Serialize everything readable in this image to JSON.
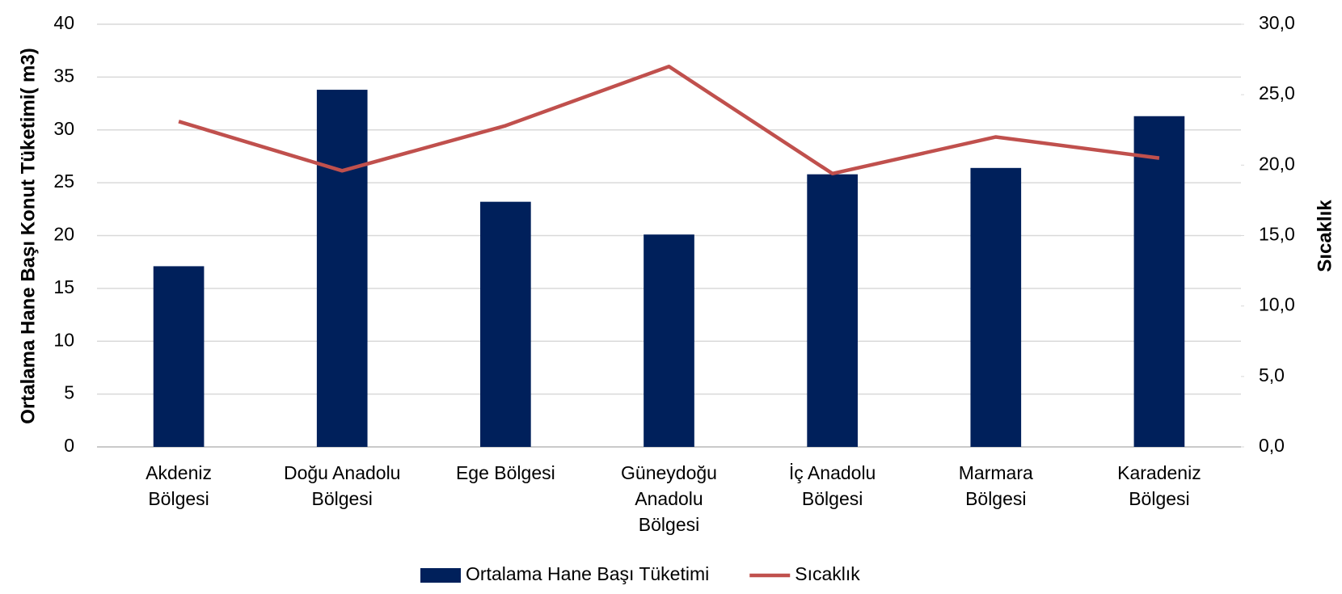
{
  "chart_data": {
    "type": "bar_line",
    "y_label": "Ortalama Hane Başı Konut Tüketimi( m3)",
    "y2_label": "Sıcaklık",
    "categories": [
      [
        "Akdeniz",
        "Bölgesi"
      ],
      [
        "Doğu Anadolu",
        "Bölgesi"
      ],
      [
        "Ege Bölgesi"
      ],
      [
        "Güneydoğu",
        "Anadolu",
        "Bölgesi"
      ],
      [
        "İç Anadolu",
        "Bölgesi"
      ],
      [
        "Marmara",
        "Bölgesi"
      ],
      [
        "Karadeniz",
        "Bölgesi"
      ]
    ],
    "series": [
      {
        "name": "Ortalama Hane Başı Tüketimi",
        "type": "bar",
        "color": "#00205b",
        "values": [
          17.1,
          33.8,
          23.2,
          20.1,
          25.8,
          26.4,
          31.3
        ]
      },
      {
        "name": "Sıcaklık",
        "type": "line",
        "axis": "y2",
        "color": "#c0504d",
        "values": [
          23.1,
          19.6,
          22.8,
          27.0,
          19.4,
          22.0,
          20.5
        ]
      }
    ],
    "ylim": [
      0,
      40
    ],
    "yticks": [
      0,
      5,
      10,
      15,
      20,
      25,
      30,
      35,
      40
    ],
    "y2lim": [
      0,
      30
    ],
    "y2ticks": [
      {
        "value": 0,
        "label": "0,0"
      },
      {
        "value": 5,
        "label": "5,0"
      },
      {
        "value": 10,
        "label": "10,0"
      },
      {
        "value": 15,
        "label": "15,0"
      },
      {
        "value": 20,
        "label": "20,0"
      },
      {
        "value": 25,
        "label": "25,0"
      },
      {
        "value": 30,
        "label": "30,0"
      }
    ],
    "grid": true,
    "legend": "bottom"
  }
}
